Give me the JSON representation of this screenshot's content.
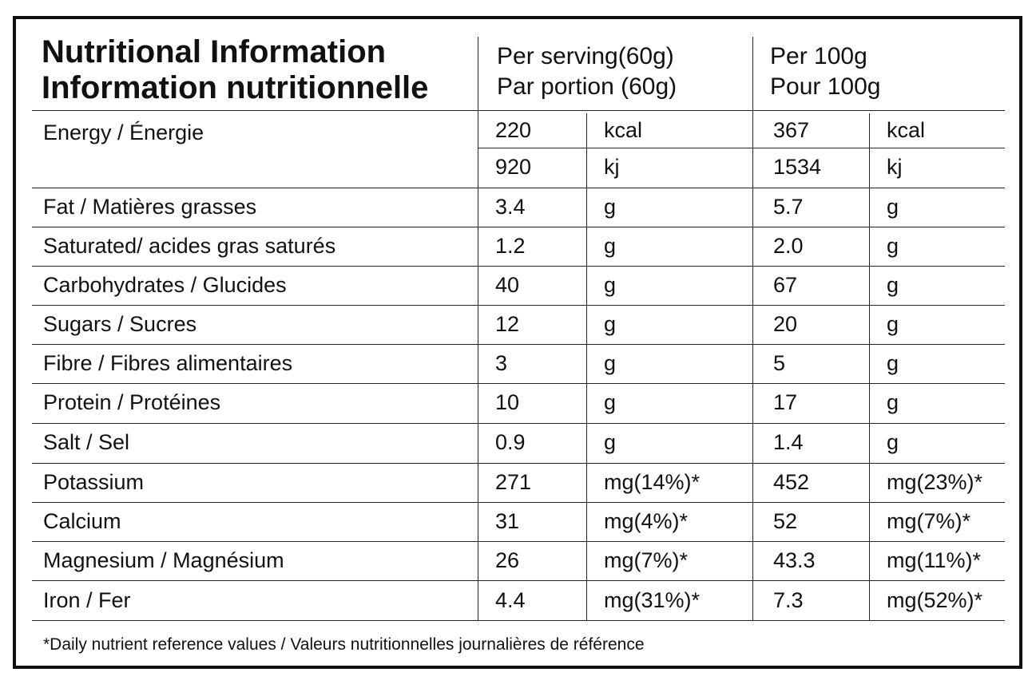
{
  "header": {
    "title_en": "Nutritional Information",
    "title_fr": "Information nutritionnelle",
    "col_serving_en": "Per serving(60g)",
    "col_serving_fr": "Par portion (60g)",
    "col_100g_en": "Per 100g",
    "col_100g_fr": "Pour 100g"
  },
  "energy": {
    "label": "Energy / Énergie",
    "kcal": {
      "serving": "220",
      "unit": "kcal",
      "per100": "367",
      "unit100": "kcal"
    },
    "kj": {
      "serving": "920",
      "unit": "kj",
      "per100": "1534",
      "unit100": "kj"
    }
  },
  "rows": [
    {
      "label": "Fat / Matières grasses",
      "serving": "3.4",
      "unit": "g",
      "per100": "5.7",
      "unit100": "g"
    },
    {
      "label": "Saturated/ acides gras saturés",
      "serving": "1.2",
      "unit": "g",
      "per100": "2.0",
      "unit100": "g"
    },
    {
      "label": "Carbohydrates / Glucides",
      "serving": "40",
      "unit": "g",
      "per100": "67",
      "unit100": "g"
    },
    {
      "label": "Sugars / Sucres",
      "serving": "12",
      "unit": "g",
      "per100": "20",
      "unit100": "g"
    },
    {
      "label": "Fibre / Fibres alimentaires",
      "serving": "3",
      "unit": "g",
      "per100": "5",
      "unit100": "g"
    },
    {
      "label": "Protein / Protéines",
      "serving": "10",
      "unit": "g",
      "per100": "17",
      "unit100": "g"
    },
    {
      "label": "Salt / Sel",
      "serving": "0.9",
      "unit": "g",
      "per100": "1.4",
      "unit100": "g"
    },
    {
      "label": "Potassium",
      "serving": "271",
      "unit": "mg(14%)*",
      "per100": "452",
      "unit100": "mg(23%)*"
    },
    {
      "label": "Calcium",
      "serving": "31",
      "unit": "mg(4%)*",
      "per100": "52",
      "unit100": "mg(7%)*"
    },
    {
      "label": "Magnesium / Magnésium",
      "serving": "26",
      "unit": "mg(7%)*",
      "per100": "43.3",
      "unit100": "mg(11%)*"
    },
    {
      "label": "Iron / Fer",
      "serving": "4.4",
      "unit": "mg(31%)*",
      "per100": "7.3",
      "unit100": "mg(52%)*"
    }
  ],
  "footnote": "*Daily nutrient reference values / Valeurs nutritionnelles journalières de référence"
}
